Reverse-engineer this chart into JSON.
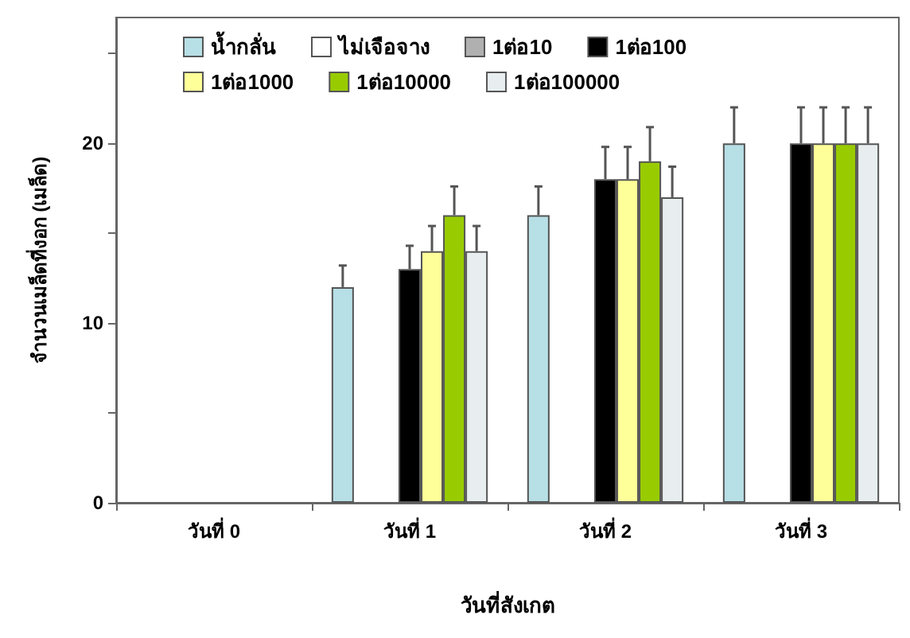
{
  "chart_data": {
    "type": "bar",
    "xlabel": "วันที่สังเกต",
    "ylabel": "จำนวนเมล็ดที่งอก (เมล็ด)",
    "categories": [
      "วันที่ 0",
      "วันที่ 1",
      "วันที่ 2",
      "วันที่ 3"
    ],
    "series": [
      {
        "name": "น้ำกลั่น",
        "color": "#b7dfe6",
        "values": [
          null,
          12,
          16,
          20
        ],
        "errors": [
          null,
          1.2,
          1.6,
          2
        ]
      },
      {
        "name": "ไม่เจือจาง",
        "color": "#ffffff",
        "values": [
          null,
          null,
          null,
          null
        ]
      },
      {
        "name": "1ต่อ10",
        "color": "#b0b0b0",
        "values": [
          null,
          null,
          null,
          null
        ]
      },
      {
        "name": "1ต่อ100",
        "color": "#000000",
        "values": [
          null,
          13,
          18,
          20
        ],
        "errors": [
          null,
          1.3,
          1.8,
          2
        ]
      },
      {
        "name": "1ต่อ1000",
        "color": "#ffff99",
        "values": [
          null,
          14,
          18,
          20
        ],
        "errors": [
          null,
          1.4,
          1.8,
          2
        ]
      },
      {
        "name": "1ต่อ10000",
        "color": "#99cc00",
        "values": [
          null,
          16,
          19,
          20
        ],
        "errors": [
          null,
          1.6,
          1.9,
          2
        ]
      },
      {
        "name": "1ต่อ100000",
        "color": "#e8eef0",
        "values": [
          null,
          14,
          17,
          20
        ],
        "errors": [
          null,
          1.4,
          1.7,
          2
        ]
      }
    ],
    "ylim": [
      0,
      27
    ],
    "yticks": [
      0,
      {
        "value": 5,
        "label": null
      },
      10,
      {
        "value": 15,
        "label": null
      },
      20,
      {
        "value": 25,
        "label": null
      }
    ],
    "legend": "top left",
    "grid": false
  }
}
